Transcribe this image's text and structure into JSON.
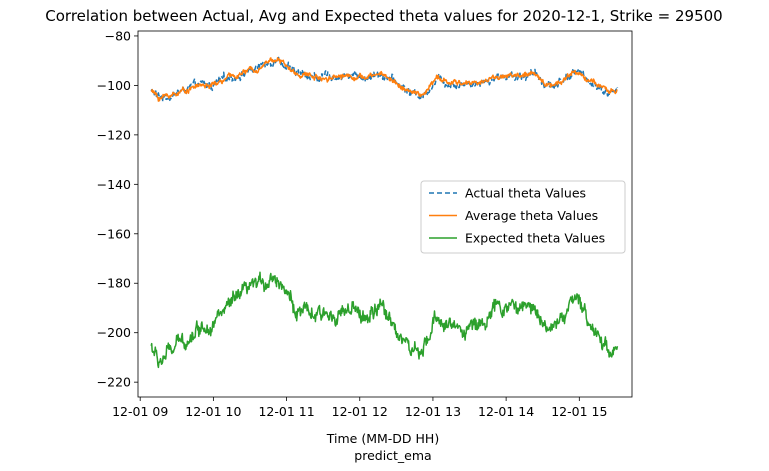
{
  "chart_data": {
    "type": "line",
    "title": "Correlation between Actual, Avg and Expected theta values for 2020-12-1, Strike = 29500",
    "xlabel": "Time (MM-DD HH)",
    "xlabel2": "predict_ema",
    "ylabel": "",
    "x_range_hours": [
      8.97,
      15.72
    ],
    "ylim": [
      -226,
      -78
    ],
    "x_ticks": [
      {
        "hour": 9,
        "label": "12-01 09"
      },
      {
        "hour": 10,
        "label": "12-01 10"
      },
      {
        "hour": 11,
        "label": "12-01 11"
      },
      {
        "hour": 12,
        "label": "12-01 12"
      },
      {
        "hour": 13,
        "label": "12-01 13"
      },
      {
        "hour": 14,
        "label": "12-01 14"
      },
      {
        "hour": 15,
        "label": "12-01 15"
      }
    ],
    "y_ticks": [
      -80,
      -100,
      -120,
      -140,
      -160,
      -180,
      -200,
      -220
    ],
    "grid": false,
    "legend_position": "center-right",
    "series": [
      {
        "name": "Actual theta Values",
        "color": "#1f77b4",
        "dash": "dashed",
        "noise": 1.8,
        "x": [
          9.15,
          9.25,
          9.4,
          9.6,
          9.8,
          10.0,
          10.2,
          10.4,
          10.6,
          10.75,
          10.85,
          10.95,
          11.1,
          11.3,
          11.5,
          11.7,
          11.9,
          12.1,
          12.3,
          12.5,
          12.7,
          12.85,
          12.95,
          13.05,
          13.2,
          13.4,
          13.6,
          13.8,
          14.0,
          14.2,
          14.4,
          14.55,
          14.65,
          14.75,
          14.9,
          15.0,
          15.1,
          15.25,
          15.4,
          15.52
        ],
        "y": [
          -102,
          -105,
          -104,
          -102,
          -100,
          -100,
          -97,
          -95,
          -93,
          -90,
          -89,
          -91,
          -95,
          -96,
          -97,
          -96,
          -96,
          -97,
          -95,
          -99,
          -103,
          -104,
          -101,
          -97,
          -99,
          -99,
          -99,
          -97,
          -96,
          -96,
          -96,
          -99,
          -100,
          -98,
          -95,
          -95,
          -97,
          -100,
          -103,
          -102
        ]
      },
      {
        "name": "Average theta Values",
        "color": "#ff7f0e",
        "dash": "solid",
        "noise": 1.2,
        "x": [
          9.15,
          9.25,
          9.4,
          9.6,
          9.8,
          10.0,
          10.2,
          10.4,
          10.6,
          10.75,
          10.85,
          10.95,
          11.1,
          11.3,
          11.5,
          11.7,
          11.9,
          12.1,
          12.3,
          12.5,
          12.7,
          12.85,
          12.95,
          13.05,
          13.2,
          13.4,
          13.6,
          13.8,
          14.0,
          14.2,
          14.4,
          14.55,
          14.65,
          14.75,
          14.9,
          15.0,
          15.1,
          15.25,
          15.4,
          15.52
        ],
        "y": [
          -102,
          -105,
          -104,
          -102,
          -100,
          -100,
          -97,
          -95,
          -93,
          -90,
          -89,
          -91,
          -95,
          -96,
          -97,
          -96,
          -96,
          -97,
          -95,
          -99,
          -103,
          -104,
          -101,
          -97,
          -99,
          -99,
          -99,
          -97,
          -96,
          -96,
          -96,
          -99,
          -100,
          -98,
          -95,
          -95,
          -97,
          -100,
          -103,
          -102
        ]
      },
      {
        "name": "Expected theta Values",
        "color": "#2ca02c",
        "dash": "solid",
        "noise": 3.5,
        "x": [
          9.15,
          9.25,
          9.4,
          9.6,
          9.8,
          10.0,
          10.2,
          10.4,
          10.6,
          10.75,
          10.85,
          10.95,
          11.1,
          11.3,
          11.5,
          11.7,
          11.9,
          12.1,
          12.3,
          12.5,
          12.7,
          12.85,
          12.95,
          13.05,
          13.2,
          13.4,
          13.6,
          13.8,
          14.0,
          14.2,
          14.4,
          14.55,
          14.65,
          14.75,
          14.9,
          15.0,
          15.1,
          15.25,
          15.4,
          15.52
        ],
        "y": [
          -205,
          -212,
          -208,
          -203,
          -198,
          -195,
          -190,
          -185,
          -181,
          -178,
          -177,
          -180,
          -190,
          -193,
          -194,
          -191,
          -192,
          -194,
          -190,
          -198,
          -207,
          -210,
          -202,
          -193,
          -197,
          -198,
          -197,
          -192,
          -189,
          -190,
          -190,
          -196,
          -199,
          -194,
          -188,
          -189,
          -193,
          -200,
          -207,
          -205
        ]
      }
    ]
  }
}
